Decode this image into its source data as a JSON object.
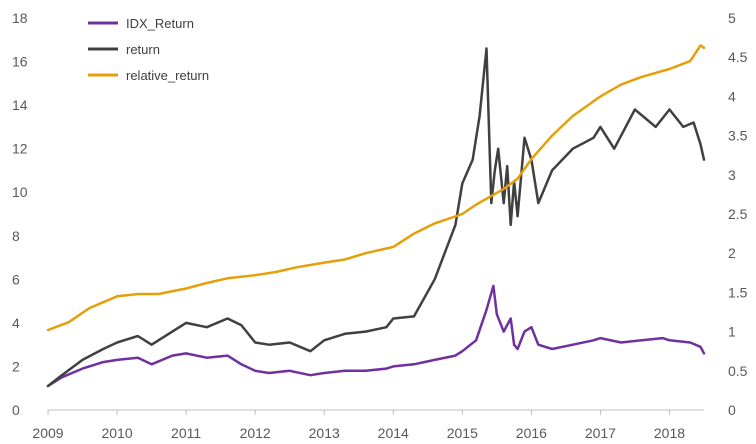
{
  "chart_data": {
    "type": "line",
    "title": "",
    "xlabel": "",
    "ylabel": "",
    "x_ticks": [
      "2009",
      "2010",
      "2011",
      "2012",
      "2013",
      "2014",
      "2015",
      "2016",
      "2017",
      "2018"
    ],
    "xlim": [
      2009.0,
      2018.5
    ],
    "ylim_left": [
      0,
      18
    ],
    "ylim_right": [
      0,
      5
    ],
    "left_ticks": [
      "0",
      "2",
      "4",
      "6",
      "8",
      "10",
      "12",
      "14",
      "16",
      "18"
    ],
    "right_ticks": [
      "0",
      "0.5",
      "1",
      "1.5",
      "2",
      "2.5",
      "3",
      "3.5",
      "4",
      "4.5",
      "5"
    ],
    "legend_position": "top-left",
    "series": [
      {
        "name": "IDX_Return",
        "axis": "left",
        "color": "#7030A0",
        "x": [
          2009.0,
          2009.2,
          2009.5,
          2009.8,
          2010.0,
          2010.3,
          2010.5,
          2010.8,
          2011.0,
          2011.3,
          2011.6,
          2011.8,
          2012.0,
          2012.2,
          2012.5,
          2012.8,
          2013.0,
          2013.3,
          2013.6,
          2013.9,
          2014.0,
          2014.3,
          2014.6,
          2014.9,
          2015.0,
          2015.2,
          2015.35,
          2015.45,
          2015.5,
          2015.6,
          2015.7,
          2015.75,
          2015.8,
          2015.9,
          2016.0,
          2016.1,
          2016.3,
          2016.6,
          2016.9,
          2017.0,
          2017.3,
          2017.6,
          2017.9,
          2018.0,
          2018.3,
          2018.45,
          2018.5
        ],
        "values": [
          1.1,
          1.5,
          1.9,
          2.2,
          2.3,
          2.4,
          2.1,
          2.5,
          2.6,
          2.4,
          2.5,
          2.1,
          1.8,
          1.7,
          1.8,
          1.6,
          1.7,
          1.8,
          1.8,
          1.9,
          2.0,
          2.1,
          2.3,
          2.5,
          2.7,
          3.2,
          4.6,
          5.7,
          4.4,
          3.6,
          4.2,
          3.0,
          2.8,
          3.6,
          3.8,
          3.0,
          2.8,
          3.0,
          3.2,
          3.3,
          3.1,
          3.2,
          3.3,
          3.2,
          3.1,
          2.9,
          2.6
        ]
      },
      {
        "name": "return",
        "axis": "left",
        "color": "#404040",
        "x": [
          2009.0,
          2009.2,
          2009.5,
          2009.8,
          2010.0,
          2010.3,
          2010.5,
          2010.8,
          2011.0,
          2011.3,
          2011.6,
          2011.8,
          2012.0,
          2012.2,
          2012.5,
          2012.8,
          2013.0,
          2013.3,
          2013.6,
          2013.9,
          2014.0,
          2014.3,
          2014.6,
          2014.9,
          2015.0,
          2015.15,
          2015.25,
          2015.35,
          2015.42,
          2015.47,
          2015.52,
          2015.6,
          2015.65,
          2015.7,
          2015.75,
          2015.8,
          2015.9,
          2016.0,
          2016.1,
          2016.3,
          2016.6,
          2016.9,
          2017.0,
          2017.2,
          2017.5,
          2017.8,
          2018.0,
          2018.2,
          2018.35,
          2018.45,
          2018.5
        ],
        "values": [
          1.1,
          1.6,
          2.3,
          2.8,
          3.1,
          3.4,
          3.0,
          3.6,
          4.0,
          3.8,
          4.2,
          3.9,
          3.1,
          3.0,
          3.1,
          2.7,
          3.2,
          3.5,
          3.6,
          3.8,
          4.2,
          4.3,
          6.0,
          8.5,
          10.4,
          11.5,
          13.5,
          16.6,
          9.5,
          11.0,
          12.0,
          9.5,
          11.2,
          8.5,
          10.5,
          8.9,
          12.5,
          11.5,
          9.5,
          11.0,
          12.0,
          12.5,
          13.0,
          12.0,
          13.8,
          13.0,
          13.8,
          13.0,
          13.2,
          12.2,
          11.5
        ]
      },
      {
        "name": "relative_return",
        "axis": "right",
        "color": "#E5A009",
        "x": [
          2009.0,
          2009.3,
          2009.6,
          2010.0,
          2010.3,
          2010.6,
          2011.0,
          2011.3,
          2011.6,
          2012.0,
          2012.3,
          2012.6,
          2013.0,
          2013.3,
          2013.6,
          2014.0,
          2014.3,
          2014.6,
          2015.0,
          2015.2,
          2015.4,
          2015.6,
          2015.8,
          2016.0,
          2016.3,
          2016.6,
          2017.0,
          2017.3,
          2017.6,
          2018.0,
          2018.3,
          2018.45,
          2018.5
        ],
        "values": [
          1.02,
          1.12,
          1.3,
          1.45,
          1.48,
          1.48,
          1.55,
          1.62,
          1.68,
          1.72,
          1.76,
          1.82,
          1.88,
          1.92,
          2.0,
          2.08,
          2.25,
          2.38,
          2.5,
          2.62,
          2.72,
          2.82,
          2.95,
          3.2,
          3.5,
          3.75,
          4.0,
          4.15,
          4.25,
          4.35,
          4.45,
          4.65,
          4.62
        ]
      }
    ]
  }
}
